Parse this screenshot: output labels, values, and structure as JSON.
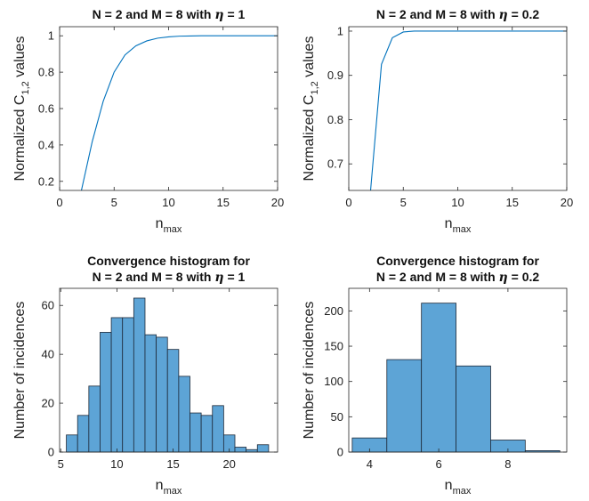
{
  "chart_data": [
    {
      "type": "line",
      "title": "N = 2 and M = 8 with η = 1",
      "title_parts": [
        "N = 2 and M = 8 with ",
        "η",
        " = 1"
      ],
      "xlabel": "n",
      "xlabel_sub": "max",
      "ylabel": "Normalized C",
      "ylabel_sub": "1,2",
      "ylabel_suffix": " values",
      "xlim": [
        0,
        20
      ],
      "ylim": [
        0.15,
        1.05
      ],
      "xticks": [
        0,
        5,
        10,
        15,
        20
      ],
      "yticks": [
        0.2,
        0.4,
        0.6,
        0.8,
        1
      ],
      "ytick_labels": [
        "0.2",
        "0.4",
        "0.6",
        "0.8",
        "1"
      ],
      "grid": false,
      "color": "#0072BD",
      "x": [
        2,
        3,
        4,
        5,
        6,
        7,
        8,
        9,
        10,
        11,
        12,
        13,
        14,
        15,
        16,
        17,
        18,
        19,
        20
      ],
      "y": [
        0.15,
        0.42,
        0.64,
        0.8,
        0.895,
        0.945,
        0.972,
        0.987,
        0.994,
        0.998,
        0.999,
        1,
        1,
        1,
        1,
        1,
        1,
        1,
        1
      ]
    },
    {
      "type": "line",
      "title": "N = 2 and M = 8 with η = 0.2",
      "title_parts": [
        "N = 2 and M = 8 with ",
        "η",
        " = 0.2"
      ],
      "xlabel": "n",
      "xlabel_sub": "max",
      "ylabel": "Normalized C",
      "ylabel_sub": "1,2",
      "ylabel_suffix": " values",
      "xlim": [
        0,
        20
      ],
      "ylim": [
        0.64,
        1.01
      ],
      "xticks": [
        0,
        5,
        10,
        15,
        20
      ],
      "yticks": [
        0.7,
        0.8,
        0.9,
        1
      ],
      "ytick_labels": [
        "0.7",
        "0.8",
        "0.9",
        "1"
      ],
      "grid": false,
      "color": "#0072BD",
      "x": [
        2,
        3,
        4,
        5,
        6,
        7,
        8,
        9,
        10,
        11,
        12,
        13,
        14,
        15,
        16,
        17,
        18,
        19,
        20
      ],
      "y": [
        0.64,
        0.925,
        0.985,
        0.998,
        1,
        1,
        1,
        1,
        1,
        1,
        1,
        1,
        1,
        1,
        1,
        1,
        1,
        1,
        1
      ]
    },
    {
      "type": "bar",
      "title": "Convergence histogram for",
      "title_line2_parts": [
        "N = 2 and M = 8 with ",
        "η",
        " = 1"
      ],
      "xlabel": "n",
      "xlabel_sub": "max",
      "ylabel": "Number of incidences",
      "xlim": [
        4.9,
        24.3
      ],
      "ylim": [
        0,
        67
      ],
      "xticks": [
        5,
        10,
        15,
        20
      ],
      "yticks": [
        0,
        20,
        40,
        60
      ],
      "grid": false,
      "bar_color": "#5DA4D6",
      "edge_color": "#1E2A3A",
      "bin_edges": [
        5.5,
        6.5,
        7.5,
        8.5,
        9.5,
        10.5,
        11.5,
        12.5,
        13.5,
        14.5,
        15.5,
        16.5,
        17.5,
        18.5,
        19.5,
        20.5,
        21.5,
        22.5,
        23.5
      ],
      "values": [
        7,
        15,
        27,
        49,
        55,
        55,
        63,
        48,
        47,
        42,
        31,
        16,
        15,
        19,
        7,
        2,
        1,
        3
      ]
    },
    {
      "type": "bar",
      "title": "Convergence histogram for",
      "title_line2_parts": [
        "N = 2 and M = 8 with ",
        "η",
        " = 0.2"
      ],
      "xlabel": "n",
      "xlabel_sub": "max",
      "ylabel": "Number of incidences",
      "xlim": [
        3.4,
        9.7
      ],
      "ylim": [
        0,
        232
      ],
      "xticks": [
        4,
        6,
        8
      ],
      "yticks": [
        0,
        50,
        100,
        150,
        200
      ],
      "grid": false,
      "bar_color": "#5DA4D6",
      "edge_color": "#1E2A3A",
      "bin_edges": [
        3.5,
        4.5,
        5.5,
        6.5,
        7.5,
        8.5,
        9.5
      ],
      "values": [
        20,
        131,
        211,
        122,
        17,
        2
      ]
    }
  ]
}
